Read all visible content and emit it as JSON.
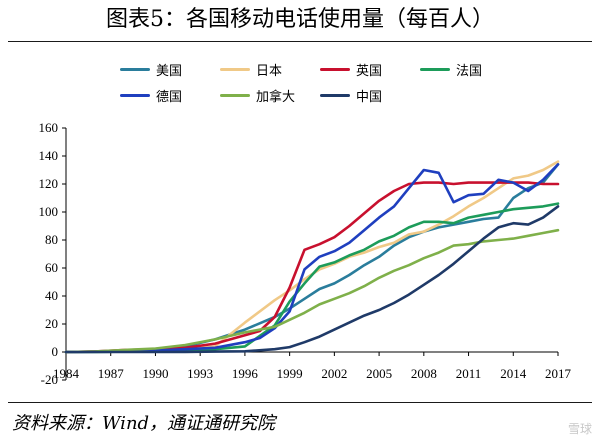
{
  "page": {
    "title": "图表5：各国移动电话使用量（每百人）",
    "source": "资料来源：Wind，通证通研究院",
    "watermark": "雪球"
  },
  "chart_data": {
    "type": "line",
    "title": "",
    "xlabel": "",
    "ylabel": "",
    "xlim": [
      1984,
      2017
    ],
    "ylim": [
      -20,
      160
    ],
    "x_ticks": [
      1984,
      1987,
      1990,
      1993,
      1996,
      1999,
      2002,
      2005,
      2008,
      2011,
      2014,
      2017
    ],
    "y_ticks": [
      -20,
      0,
      20,
      40,
      60,
      80,
      100,
      120,
      140,
      160
    ],
    "grid": false,
    "legend_position": "top",
    "series": [
      {
        "name": "美国",
        "color": "#2a7d9c",
        "x": [
          1984,
          1986,
          1988,
          1990,
          1992,
          1994,
          1996,
          1998,
          1999,
          2000,
          2001,
          2002,
          2003,
          2004,
          2005,
          2006,
          2007,
          2008,
          2009,
          2010,
          2011,
          2012,
          2013,
          2014,
          2015,
          2016,
          2017
        ],
        "y": [
          0,
          0.3,
          0.9,
          2,
          4,
          9,
          16,
          25,
          31,
          38,
          45,
          49,
          55,
          62,
          68,
          76,
          82,
          86,
          89,
          91,
          93,
          95,
          96,
          110,
          117,
          121,
          134
        ]
      },
      {
        "name": "日本",
        "color": "#f0c987",
        "x": [
          1984,
          1986,
          1988,
          1990,
          1992,
          1994,
          1996,
          1998,
          1999,
          2000,
          2001,
          2002,
          2003,
          2004,
          2005,
          2006,
          2007,
          2008,
          2009,
          2010,
          2011,
          2012,
          2013,
          2014,
          2015,
          2016,
          2017
        ],
        "y": [
          0,
          0.2,
          0.5,
          1,
          1.5,
          4,
          21,
          37,
          44,
          52,
          59,
          63,
          68,
          71,
          75,
          78,
          84,
          86,
          91,
          97,
          104,
          110,
          117,
          124,
          126,
          130,
          136
        ]
      },
      {
        "name": "英国",
        "color": "#c8102e",
        "x": [
          1984,
          1986,
          1988,
          1990,
          1992,
          1994,
          1996,
          1997,
          1998,
          1999,
          2000,
          2001,
          2002,
          2003,
          2004,
          2005,
          2006,
          2007,
          2008,
          2009,
          2010,
          2011,
          2012,
          2013,
          2014,
          2015,
          2016,
          2017
        ],
        "y": [
          0,
          0.4,
          1.5,
          2,
          3,
          6,
          12,
          15,
          25,
          46,
          73,
          77,
          82,
          90,
          99,
          108,
          115,
          120,
          121,
          121,
          120,
          121,
          121,
          121,
          121,
          121,
          120,
          120
        ]
      },
      {
        "name": "法国",
        "color": "#1d9c5a",
        "x": [
          1984,
          1986,
          1988,
          1990,
          1992,
          1994,
          1996,
          1998,
          1999,
          2000,
          2001,
          2002,
          2003,
          2004,
          2005,
          2006,
          2007,
          2008,
          2009,
          2010,
          2011,
          2012,
          2013,
          2014,
          2015,
          2016,
          2017
        ],
        "y": [
          0,
          0.1,
          0.3,
          0.6,
          1,
          2,
          4,
          19,
          36,
          49,
          61,
          64,
          69,
          73,
          79,
          83,
          89,
          93,
          93,
          92,
          96,
          98,
          100,
          102,
          103,
          104,
          106
        ]
      },
      {
        "name": "德国",
        "color": "#1f3fbf",
        "x": [
          1984,
          1986,
          1988,
          1990,
          1992,
          1994,
          1996,
          1997,
          1998,
          1999,
          2000,
          2001,
          2002,
          2003,
          2004,
          2005,
          2006,
          2007,
          2008,
          2009,
          2010,
          2011,
          2012,
          2013,
          2014,
          2015,
          2016,
          2017
        ],
        "y": [
          0,
          0.2,
          0.5,
          1,
          2,
          3,
          7,
          10,
          17,
          29,
          59,
          68,
          72,
          78,
          87,
          96,
          104,
          117,
          130,
          128,
          107,
          112,
          113,
          123,
          121,
          115,
          123,
          134
        ]
      },
      {
        "name": "加拿大",
        "color": "#7fb04a",
        "x": [
          1984,
          1986,
          1988,
          1990,
          1992,
          1994,
          1996,
          1998,
          1999,
          2000,
          2001,
          2002,
          2003,
          2004,
          2005,
          2006,
          2007,
          2008,
          2009,
          2010,
          2011,
          2012,
          2013,
          2014,
          2015,
          2016,
          2017
        ],
        "y": [
          0,
          0.4,
          1.5,
          2.5,
          5,
          9,
          14,
          18,
          23,
          28,
          34,
          38,
          42,
          47,
          53,
          58,
          62,
          67,
          71,
          76,
          77,
          79,
          80,
          81,
          83,
          85,
          87
        ]
      },
      {
        "name": "中国",
        "color": "#1f3a68",
        "x": [
          1984,
          1986,
          1988,
          1990,
          1992,
          1994,
          1996,
          1998,
          1999,
          2000,
          2001,
          2002,
          2003,
          2004,
          2005,
          2006,
          2007,
          2008,
          2009,
          2010,
          2011,
          2012,
          2013,
          2014,
          2015,
          2016,
          2017
        ],
        "y": [
          0,
          0,
          0,
          0,
          0.1,
          0.3,
          0.5,
          2,
          3.5,
          7,
          11,
          16,
          21,
          26,
          30,
          35,
          41,
          48,
          55,
          63,
          72,
          81,
          89,
          92,
          91,
          96,
          104
        ]
      }
    ]
  }
}
